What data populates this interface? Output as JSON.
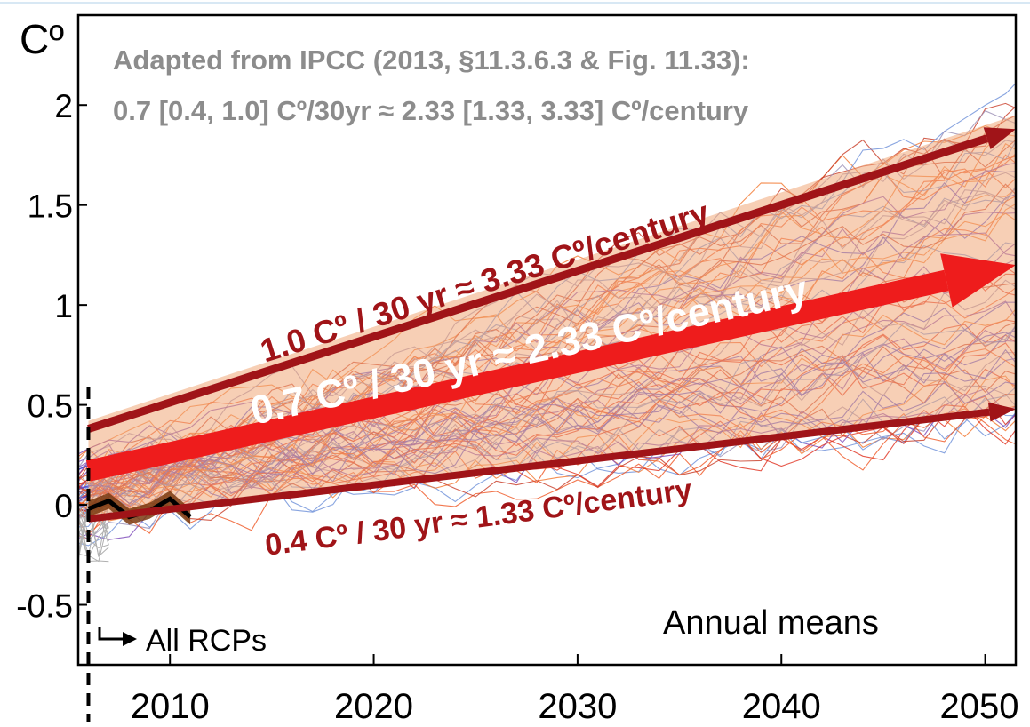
{
  "chart_data": {
    "type": "line",
    "ylabel": "Cº",
    "title_lines": [
      "Adapted from IPCC (2013, §11.3.6.3 & Fig. 11.33):",
      "0.7 [0.4, 1.0] Cº/30yr ≈ 2.33 [1.33, 3.33] Cº/century"
    ],
    "xlim": [
      2005.5,
      2051.5
    ],
    "ylim": [
      -0.8,
      2.45
    ],
    "x_ticks": [
      2010,
      2020,
      2030,
      2040,
      2050
    ],
    "x_tick_labels": [
      "2010",
      "2020",
      "2030",
      "2040",
      "2050"
    ],
    "y_ticks": [
      -0.5,
      0,
      0.5,
      1,
      1.5,
      2
    ],
    "y_tick_labels": [
      "-0.5",
      "0",
      "0.5",
      "1",
      "1.5",
      "2"
    ],
    "grid": false,
    "annotations": {
      "all_rcps": "All RCPs",
      "annual_means": "Annual means"
    },
    "start_year": 2006,
    "uncertainty_band": {
      "x": [
        2006,
        2051.5
      ],
      "low": [
        -0.07,
        0.47
      ],
      "high": [
        0.42,
        1.95
      ],
      "color": "#f0a878"
    },
    "trend_arrows": [
      {
        "id": "upper",
        "label": "1.0 Cº / 30 yr ≈ 3.33 Cº/century",
        "x": [
          2006,
          2051.5
        ],
        "y": [
          0.38,
          1.88
        ],
        "color": "#a01418"
      },
      {
        "id": "central",
        "label": "0.7 Cº / 30 yr ≈ 2.33 Cº/century",
        "x": [
          2006,
          2051.5
        ],
        "y": [
          0.17,
          1.2
        ],
        "color": "#ee1c1c"
      },
      {
        "id": "lower",
        "label": "0.4 Cº / 30 yr ≈ 1.33 Cº/century",
        "x": [
          2006,
          2051.5
        ],
        "y": [
          -0.07,
          0.48
        ],
        "color": "#a01418"
      }
    ],
    "observations": {
      "x": [
        2006,
        2007,
        2008,
        2009,
        2010,
        2011
      ],
      "y": [
        -0.02,
        0.02,
        -0.06,
        -0.03,
        0.03,
        -0.06
      ],
      "color": "#000000"
    },
    "model_colors": [
      "#e0301e",
      "#ef5522",
      "#f2752c",
      "#c83a24",
      "#4a4ad8",
      "#7a46b8",
      "#9a8fb5",
      "#6c8fd8"
    ]
  }
}
